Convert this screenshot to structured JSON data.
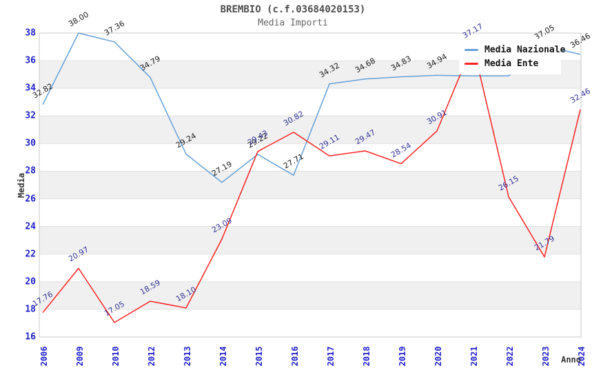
{
  "chart_data": {
    "type": "line",
    "title": "BREMBIO (c.f.03684020153)",
    "subtitle": "Media Importi",
    "xlabel": "Anno",
    "ylabel": "Media",
    "ylim": [
      16,
      38
    ],
    "ytick_step": 2,
    "grid": true,
    "legend_position": "top-right",
    "categories": [
      "2006",
      "2009",
      "2010",
      "2012",
      "2013",
      "2014",
      "2015",
      "2016",
      "2017",
      "2018",
      "2019",
      "2020",
      "2021",
      "2022",
      "2023",
      "2024"
    ],
    "series": [
      {
        "name": "Media Nazionale",
        "color": "#64a0d8",
        "label_color": "#1a1a1a",
        "values": [
          32.82,
          38.0,
          37.36,
          34.79,
          29.24,
          27.19,
          29.22,
          27.71,
          34.32,
          34.68,
          34.83,
          34.94,
          34.9,
          34.9,
          37.05,
          36.46
        ]
      },
      {
        "name": "Media Ente",
        "color": "#ff2020",
        "label_color": "#333399",
        "values": [
          17.76,
          20.97,
          17.05,
          18.59,
          18.1,
          23.09,
          29.43,
          30.82,
          29.11,
          29.47,
          28.54,
          30.91,
          37.17,
          26.15,
          21.79,
          32.46
        ]
      }
    ],
    "colors": {
      "axis_tick": "#2020cc",
      "band_fill": "#f0f0f0",
      "gridline": "#e0e0e0",
      "plot_border": "#c9c9c9",
      "title": "#4d4d4d",
      "subtitle": "#666666"
    }
  }
}
